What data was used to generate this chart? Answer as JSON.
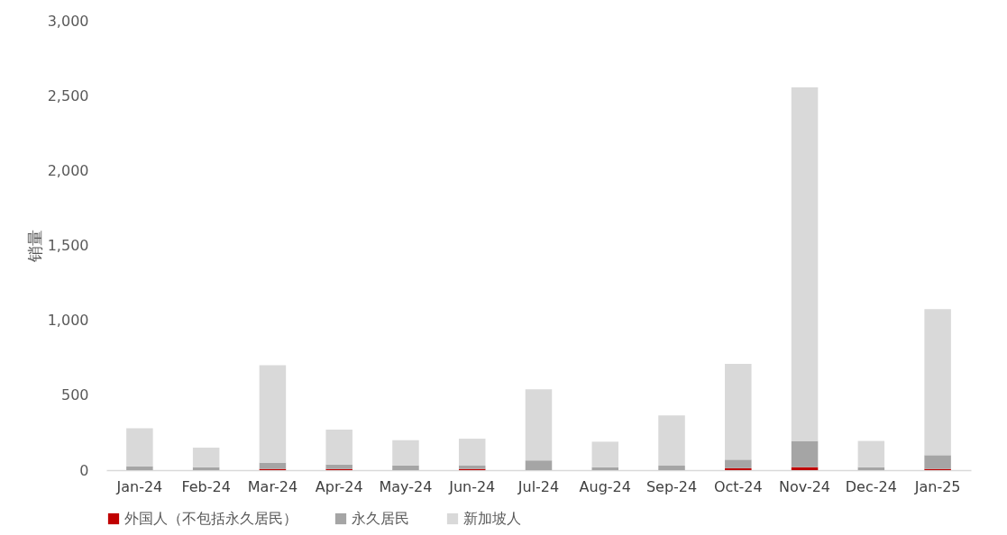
{
  "chart_data": {
    "type": "bar",
    "stacked": true,
    "ylabel": "销量",
    "categories": [
      "Jan-24",
      "Feb-24",
      "Mar-24",
      "Apr-24",
      "May-24",
      "Jun-24",
      "Jul-24",
      "Aug-24",
      "Sep-24",
      "Oct-24",
      "Nov-24",
      "Dec-24",
      "Jan-25"
    ],
    "series": [
      {
        "name": "外国人（不包括永久居民）",
        "color": "#c00000",
        "values": [
          0,
          0,
          8,
          8,
          0,
          8,
          0,
          0,
          0,
          13,
          20,
          0,
          8
        ]
      },
      {
        "name": "永久居民",
        "color": "#a5a5a5",
        "values": [
          26,
          20,
          42,
          29,
          32,
          22,
          65,
          20,
          30,
          57,
          175,
          20,
          92
        ]
      },
      {
        "name": "新加坡人",
        "color": "#d9d9d9",
        "values": [
          254,
          130,
          650,
          233,
          168,
          180,
          475,
          170,
          335,
          640,
          2360,
          175,
          975
        ]
      }
    ],
    "ylim": [
      0,
      3000
    ],
    "yticks": [
      0,
      {
        "value": 500,
        "label": "500"
      },
      {
        "value": 1000,
        "label": "1,000"
      },
      {
        "value": 1500,
        "label": "1,500"
      },
      {
        "value": 2000,
        "label": "2,000"
      },
      {
        "value": 2500,
        "label": "2,500"
      },
      {
        "value": 3000,
        "label": "3,000"
      }
    ],
    "grid": false,
    "legend": "bottom"
  }
}
